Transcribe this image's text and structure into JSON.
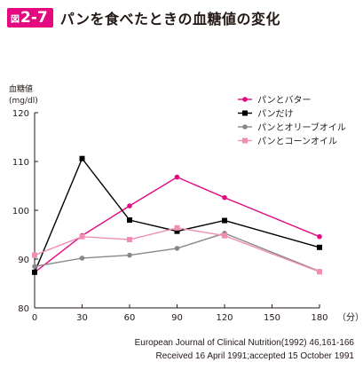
{
  "figure": {
    "prefix": "図",
    "number": "2-7",
    "title": "パンを食べたときの血糖値の変化"
  },
  "colors": {
    "accent": "#e4097f"
  },
  "chart_data": {
    "type": "line",
    "title": "パンを食べたときの血糖値の変化",
    "ylabel": "血糖値",
    "yunit": "(mg/dl)",
    "xunit": "（分）",
    "x": [
      0,
      30,
      60,
      90,
      120,
      180
    ],
    "xticks": [
      0,
      30,
      60,
      90,
      120,
      150,
      180
    ],
    "yticks": [
      80,
      90,
      100,
      110,
      120
    ],
    "xlim": [
      0,
      180
    ],
    "ylim": [
      80,
      120
    ],
    "grid": false,
    "legend_position": "top-right",
    "series": [
      {
        "name": "パンとバター",
        "color": "#e4097f",
        "marker": "circle",
        "values": [
          87.3,
          94.8,
          100.9,
          106.8,
          102.6,
          94.6
        ]
      },
      {
        "name": "パンだけ",
        "color": "#000000",
        "marker": "square",
        "values": [
          87.3,
          110.6,
          98.0,
          95.7,
          97.9,
          92.4
        ]
      },
      {
        "name": "パンとオリーブオイル",
        "color": "#888888",
        "marker": "circle",
        "values": [
          88.5,
          90.2,
          90.8,
          92.2,
          95.3,
          87.5
        ]
      },
      {
        "name": "パンとコーンオイル",
        "color": "#f08db5",
        "marker": "square",
        "values": [
          90.8,
          94.6,
          94.0,
          96.4,
          94.8,
          87.4
        ]
      }
    ]
  },
  "source": {
    "line1": "European Journal of Clinical Nutrition(1992) 46,161-166",
    "line2": "Received 16 April 1991;accepted 15 October 1991"
  }
}
